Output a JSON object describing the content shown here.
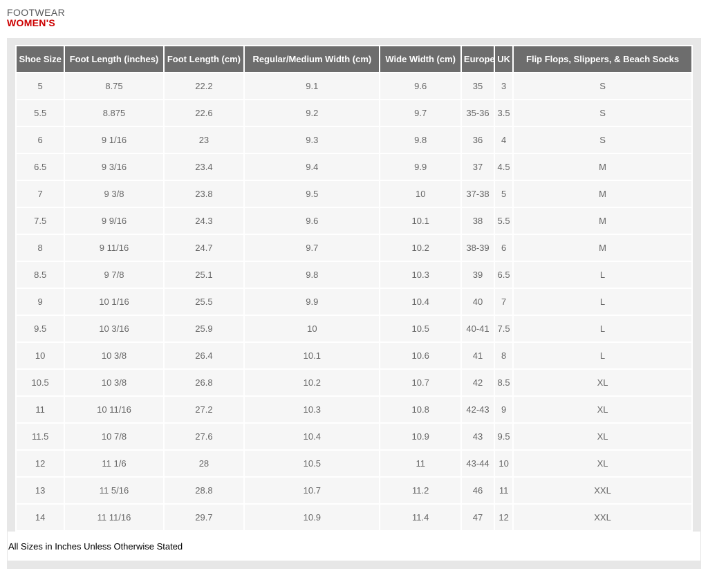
{
  "page": {
    "category_label": "FOOTWEAR",
    "title": "WOMEN'S",
    "footnote": "All Sizes in Inches Unless Otherwise Stated"
  },
  "colors": {
    "panel_bg": "#e7e7e7",
    "header_bg": "#6d6d6d",
    "header_text": "#ffffff",
    "row_bg": "#f6f6f6",
    "cell_text": "#666666",
    "category_gray": "#58595b",
    "title_red": "#cc0000"
  },
  "size_table": {
    "columns": [
      "Shoe Size",
      "Foot Length (inches)",
      "Foot Length (cm)",
      "Regular/Medium Width (cm)",
      "Wide Width (cm)",
      "Europe",
      "UK",
      "Flip Flops, Slippers, & Beach Socks"
    ],
    "rows": [
      [
        "5",
        "8.75",
        "22.2",
        "9.1",
        "9.6",
        "35",
        "3",
        "S"
      ],
      [
        "5.5",
        "8.875",
        "22.6",
        "9.2",
        "9.7",
        "35-36",
        "3.5",
        "S"
      ],
      [
        "6",
        "9 1/16",
        "23",
        "9.3",
        "9.8",
        "36",
        "4",
        "S"
      ],
      [
        "6.5",
        "9 3/16",
        "23.4",
        "9.4",
        "9.9",
        "37",
        "4.5",
        "M"
      ],
      [
        "7",
        "9 3/8",
        "23.8",
        "9.5",
        "10",
        "37-38",
        "5",
        "M"
      ],
      [
        "7.5",
        "9 9/16",
        "24.3",
        "9.6",
        "10.1",
        "38",
        "5.5",
        "M"
      ],
      [
        "8",
        "9 11/16",
        "24.7",
        "9.7",
        "10.2",
        "38-39",
        "6",
        "M"
      ],
      [
        "8.5",
        "9 7/8",
        "25.1",
        "9.8",
        "10.3",
        "39",
        "6.5",
        "L"
      ],
      [
        "9",
        "10 1/16",
        "25.5",
        "9.9",
        "10.4",
        "40",
        "7",
        "L"
      ],
      [
        "9.5",
        "10 3/16",
        "25.9",
        "10",
        "10.5",
        "40-41",
        "7.5",
        "L"
      ],
      [
        "10",
        "10 3/8",
        "26.4",
        "10.1",
        "10.6",
        "41",
        "8",
        "L"
      ],
      [
        "10.5",
        "10 3/8",
        "26.8",
        "10.2",
        "10.7",
        "42",
        "8.5",
        "XL"
      ],
      [
        "11",
        "10 11/16",
        "27.2",
        "10.3",
        "10.8",
        "42-43",
        "9",
        "XL"
      ],
      [
        "11.5",
        "10 7/8",
        "27.6",
        "10.4",
        "10.9",
        "43",
        "9.5",
        "XL"
      ],
      [
        "12",
        "11 1/6",
        "28",
        "10.5",
        "11",
        "43-44",
        "10",
        "XL"
      ],
      [
        "13",
        "11 5/16",
        "28.8",
        "10.7",
        "11.2",
        "46",
        "11",
        "XXL"
      ],
      [
        "14",
        "11 11/16",
        "29.7",
        "10.9",
        "11.4",
        "47",
        "12",
        "XXL"
      ]
    ]
  }
}
